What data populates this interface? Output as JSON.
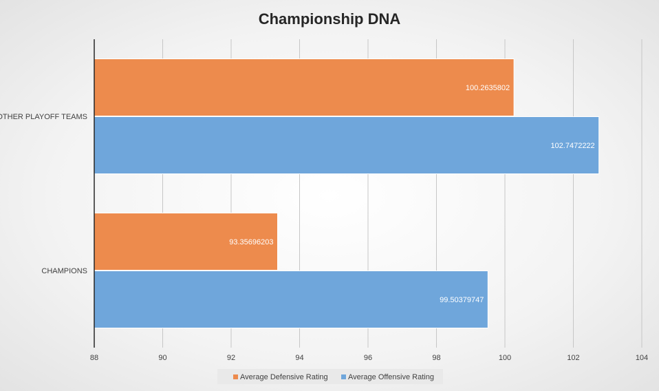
{
  "chart_data": {
    "type": "bar",
    "orientation": "horizontal",
    "title": "Championship DNA",
    "categories": [
      "OTHER PLAYOFF TEAMS",
      "CHAMPIONS"
    ],
    "series": [
      {
        "name": "Average Defensive Rating",
        "color": "#ed8b4d",
        "values": [
          100.2635802,
          93.35696203
        ],
        "labels": [
          "100.2635802",
          "93.35696203"
        ]
      },
      {
        "name": "Average Offensive Rating",
        "color": "#6fa6db",
        "values": [
          102.7472222,
          99.50379747
        ],
        "labels": [
          "102.7472222",
          "99.50379747"
        ]
      }
    ],
    "xlim": [
      88,
      104
    ],
    "xticks": [
      88,
      90,
      92,
      94,
      96,
      98,
      100,
      102,
      104
    ],
    "xtick_labels": [
      "88",
      "90",
      "92",
      "94",
      "96",
      "98",
      "100",
      "102",
      "104"
    ],
    "grid": true,
    "legend": "bottom"
  }
}
